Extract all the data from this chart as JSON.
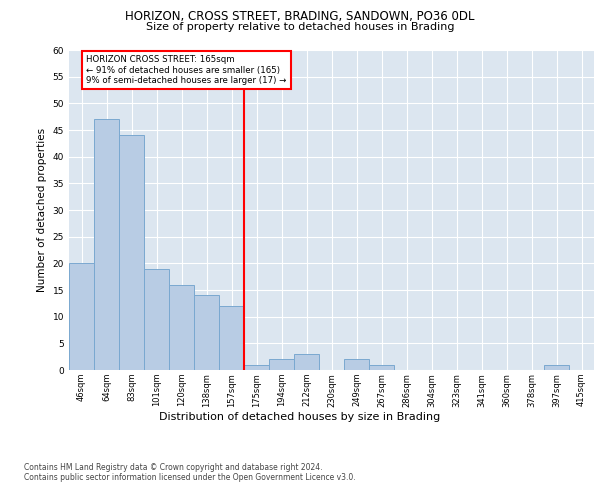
{
  "title1": "HORIZON, CROSS STREET, BRADING, SANDOWN, PO36 0DL",
  "title2": "Size of property relative to detached houses in Brading",
  "xlabel": "Distribution of detached houses by size in Brading",
  "ylabel": "Number of detached properties",
  "categories": [
    "46sqm",
    "64sqm",
    "83sqm",
    "101sqm",
    "120sqm",
    "138sqm",
    "157sqm",
    "175sqm",
    "194sqm",
    "212sqm",
    "230sqm",
    "249sqm",
    "267sqm",
    "286sqm",
    "304sqm",
    "323sqm",
    "341sqm",
    "360sqm",
    "378sqm",
    "397sqm",
    "415sqm"
  ],
  "values": [
    20,
    47,
    44,
    19,
    16,
    14,
    12,
    1,
    2,
    3,
    0,
    2,
    1,
    0,
    0,
    0,
    0,
    0,
    0,
    1,
    0
  ],
  "bar_color": "#b8cce4",
  "bar_edge_color": "#7aa8d0",
  "vline_x_index": 7,
  "vline_color": "red",
  "annotation_text": "HORIZON CROSS STREET: 165sqm\n← 91% of detached houses are smaller (165)\n9% of semi-detached houses are larger (17) →",
  "annotation_box_color": "white",
  "annotation_box_edge_color": "red",
  "ylim": [
    0,
    60
  ],
  "yticks": [
    0,
    5,
    10,
    15,
    20,
    25,
    30,
    35,
    40,
    45,
    50,
    55,
    60
  ],
  "background_color": "#dce6f0",
  "footer1": "Contains HM Land Registry data © Crown copyright and database right 2024.",
  "footer2": "Contains public sector information licensed under the Open Government Licence v3.0."
}
